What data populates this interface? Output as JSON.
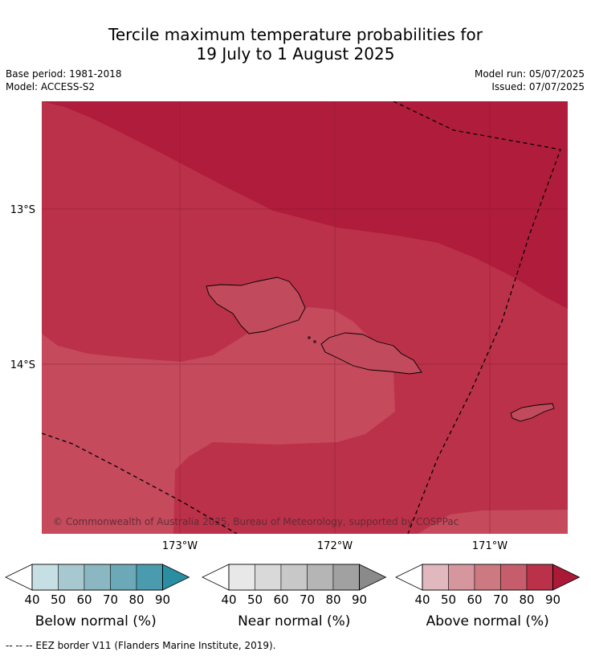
{
  "title_line1": "Tercile maximum temperature probabilities for",
  "title_line2": "19 July to 1 August 2025",
  "meta": {
    "base_period": "Base period: 1981-2018",
    "model": "Model: ACCESS-S2",
    "model_run": "Model run: 05/07/2025",
    "issued": "Issued: 07/07/2025"
  },
  "map": {
    "lat_labels": [
      "13°S",
      "14°S"
    ],
    "lon_labels": [
      "173°W",
      "172°W",
      "171°W"
    ],
    "copyright": "© Commonwealth of Australia 2025, Bureau of Meteorology, supported by COSPPac",
    "colors": {
      "band70": "#c44a5c",
      "band80": "#bb3149",
      "band90": "#b01c3b",
      "land": "#c24a5d"
    }
  },
  "colorbars": [
    {
      "label": "Below normal (%)",
      "ticks": [
        "40",
        "50",
        "60",
        "70",
        "80",
        "90"
      ],
      "colors": [
        "#c6dfe5",
        "#a6c8ce",
        "#8bb7c2",
        "#6ba9b9",
        "#4a9bad",
        "#2a8ea3"
      ]
    },
    {
      "label": "Near normal (%)",
      "ticks": [
        "40",
        "50",
        "60",
        "70",
        "80",
        "90"
      ],
      "colors": [
        "#e8e8e8",
        "#d9d9d9",
        "#c8c8c8",
        "#b5b5b5",
        "#a1a1a1",
        "#8a8a8a"
      ]
    },
    {
      "label": "Above normal (%)",
      "ticks": [
        "40",
        "50",
        "60",
        "70",
        "80",
        "90"
      ],
      "colors": [
        "#e0b8bd",
        "#d5969e",
        "#cc7982",
        "#c65d6c",
        "#bb3149",
        "#aa1935"
      ]
    }
  ],
  "footnote": "--  --  -- EEZ border V11 (Flanders Marine Institute, 2019)."
}
